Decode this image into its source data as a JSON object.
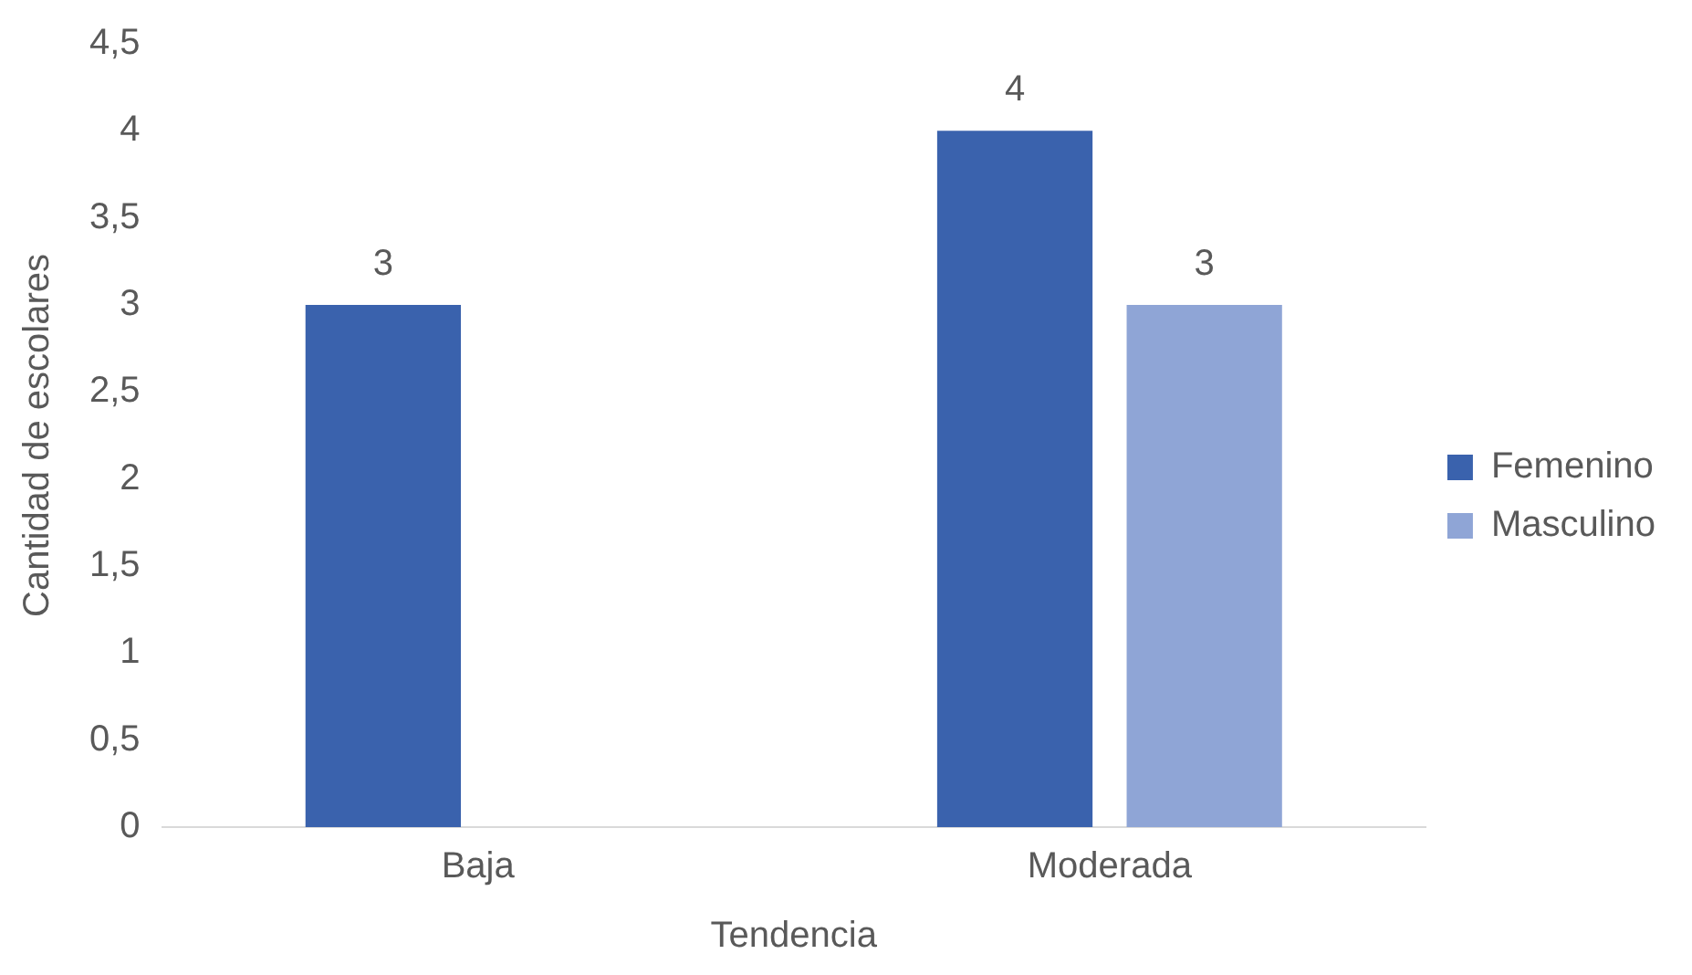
{
  "chart_data": {
    "type": "bar",
    "xlabel": "Tendencia",
    "ylabel": "Cantidad de escolares",
    "categories": [
      "Baja",
      "Moderada"
    ],
    "series": [
      {
        "name": "Femenino",
        "color": "#3a62ad",
        "values": [
          3,
          4
        ]
      },
      {
        "name": "Masculino",
        "color": "#8fa5d6",
        "values": [
          null,
          3
        ]
      }
    ],
    "ylim": [
      0,
      4.5
    ],
    "yticks": [
      0,
      {
        "value": 0.5,
        "label": "0,5"
      },
      1,
      {
        "value": 1.5,
        "label": "1,5"
      },
      2,
      {
        "value": 2.5,
        "label": "2,5"
      },
      3,
      {
        "value": 3.5,
        "label": "3,5"
      },
      4,
      {
        "value": 4.5,
        "label": "4,5"
      }
    ],
    "grid": false,
    "legend": "right",
    "data_labels": true
  }
}
